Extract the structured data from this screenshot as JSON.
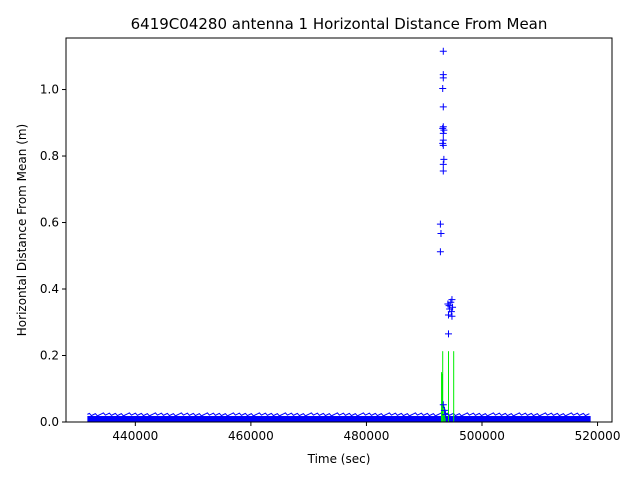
{
  "chart_data": {
    "type": "scatter",
    "title": "6419C04280 antenna 1 Horizontal Distance From Mean",
    "xlabel": "Time (sec)",
    "ylabel": "Horizontal Distance From Mean (m)",
    "xlim": [
      428000,
      522500
    ],
    "ylim": [
      0,
      1.155
    ],
    "xticks": [
      440000,
      460000,
      480000,
      500000,
      520000
    ],
    "yticks": [
      0.0,
      0.2,
      0.4,
      0.6,
      0.8,
      1.0
    ],
    "xtick_labels": [
      "440000",
      "460000",
      "480000",
      "500000",
      "520000"
    ],
    "ytick_labels": [
      "0.0",
      "0.2",
      "0.4",
      "0.6",
      "0.8",
      "1.0"
    ],
    "grid": false,
    "colors": {
      "points": "#0000ff",
      "sigma": "#00ee00",
      "axes": "#000000"
    },
    "series": [
      {
        "marker": "+",
        "color": "#0000ff",
        "x_range": [
          431700,
          518800
        ],
        "baseline_band": [
          0.0,
          0.018
        ],
        "points": [
          {
            "x": 493300,
            "y": 1.115
          },
          {
            "x": 493300,
            "y": 1.045
          },
          {
            "x": 493300,
            "y": 1.035
          },
          {
            "x": 493200,
            "y": 1.003
          },
          {
            "x": 493300,
            "y": 0.948
          },
          {
            "x": 493300,
            "y": 0.888
          },
          {
            "x": 493200,
            "y": 0.883
          },
          {
            "x": 493400,
            "y": 0.878
          },
          {
            "x": 493300,
            "y": 0.868
          },
          {
            "x": 493300,
            "y": 0.848
          },
          {
            "x": 493200,
            "y": 0.838
          },
          {
            "x": 493300,
            "y": 0.832
          },
          {
            "x": 493400,
            "y": 0.79
          },
          {
            "x": 493300,
            "y": 0.775
          },
          {
            "x": 493300,
            "y": 0.755
          },
          {
            "x": 492800,
            "y": 0.595
          },
          {
            "x": 492900,
            "y": 0.567
          },
          {
            "x": 492800,
            "y": 0.512
          },
          {
            "x": 494800,
            "y": 0.368
          },
          {
            "x": 494600,
            "y": 0.36
          },
          {
            "x": 494100,
            "y": 0.355
          },
          {
            "x": 494300,
            "y": 0.35
          },
          {
            "x": 494900,
            "y": 0.345
          },
          {
            "x": 494400,
            "y": 0.34
          },
          {
            "x": 494700,
            "y": 0.332
          },
          {
            "x": 494200,
            "y": 0.322
          },
          {
            "x": 494800,
            "y": 0.318
          },
          {
            "x": 494200,
            "y": 0.265
          },
          {
            "x": 493300,
            "y": 0.052
          },
          {
            "x": 493500,
            "y": 0.035
          },
          {
            "x": 493700,
            "y": 0.022
          }
        ]
      },
      {
        "type": "line",
        "color": "#00ee00",
        "spikes": [
          {
            "x": 493000,
            "y": 0.15
          },
          {
            "x": 493100,
            "y": 0.145
          },
          {
            "x": 493200,
            "y": 0.213
          },
          {
            "x": 493400,
            "y": 0.05
          },
          {
            "x": 493600,
            "y": 0.04
          },
          {
            "x": 494200,
            "y": 0.213
          },
          {
            "x": 495100,
            "y": 0.213
          }
        ]
      }
    ]
  }
}
